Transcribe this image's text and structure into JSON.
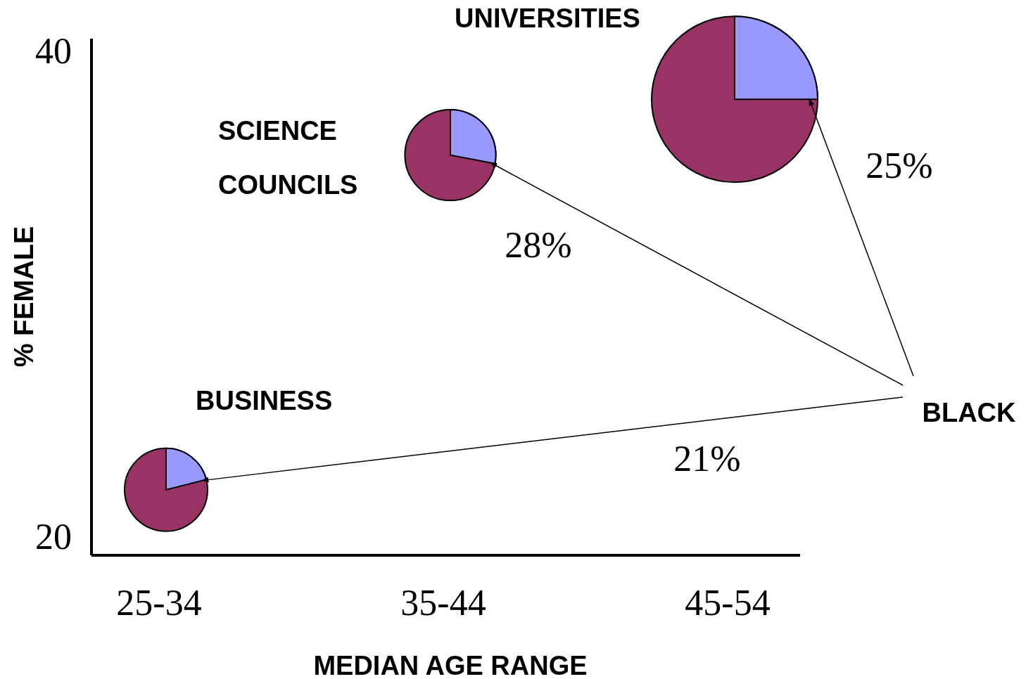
{
  "chart_data": {
    "type": "bubble",
    "xlabel": "MEDIAN AGE RANGE",
    "ylabel": "% FEMALE",
    "categories": [
      "25-34",
      "35-44",
      "45-54"
    ],
    "ylim": [
      19.2,
      40.5
    ],
    "yticks": [
      20,
      40
    ],
    "series": [
      {
        "name": "BUSINESS",
        "color": "#993366",
        "values": [
          21.9,
          null,
          null
        ],
        "sizes": [
          0.25,
          null,
          null
        ]
      },
      {
        "name": "SCIENCE COUNCILS",
        "color": "#993366",
        "values": [
          null,
          35.7,
          null
        ],
        "sizes": [
          null,
          0.3,
          null
        ]
      },
      {
        "name": "UNIVERSITIES",
        "color": "#993366",
        "values": [
          null,
          null,
          38.0
        ],
        "sizes": [
          null,
          null,
          1
        ]
      }
    ],
    "annotations": [
      "21%",
      "28%",
      "25%",
      "BLACK"
    ]
  }
}
